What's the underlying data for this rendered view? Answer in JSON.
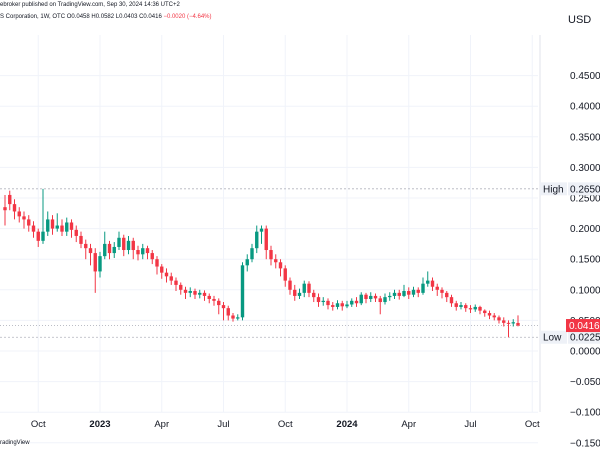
{
  "header": {
    "published": "ebroker published on TradingView.com, Sep 30, 2024 14:36 UTC+2",
    "symbol": "S Corporation, 1W, OTC",
    "ohlc": "O0.0458 H0.0582 L0.0403 C0.0416",
    "change": "−0.0020 (−4.64%)"
  },
  "currency": "USD",
  "footer": {
    "brand": "radingView"
  },
  "colors": {
    "up": "#089981",
    "down": "#f23645",
    "grid": "#f0f3fa"
  },
  "chart_data": {
    "type": "candlestick",
    "ylim": [
      -0.15,
      0.47
    ],
    "yticks": [
      {
        "v": 0.45,
        "label": "0.4500"
      },
      {
        "v": 0.4,
        "label": "0.4000"
      },
      {
        "v": 0.35,
        "label": "0.3500"
      },
      {
        "v": 0.3,
        "label": "0.3000"
      },
      {
        "v": 0.25,
        "label": "0.2500"
      },
      {
        "v": 0.2,
        "label": "0.2000"
      },
      {
        "v": 0.15,
        "label": "0.1500"
      },
      {
        "v": 0.1,
        "label": "0.1000"
      },
      {
        "v": 0.05,
        "label": "0.0500"
      },
      {
        "v": 0.0,
        "label": "0.0000"
      },
      {
        "v": -0.05,
        "label": "−0.0500"
      },
      {
        "v": -0.1,
        "label": "−0.1000"
      },
      {
        "v": -0.15,
        "label": "−0.1500"
      }
    ],
    "xticks": [
      {
        "week": 7,
        "label": "Oct",
        "major": false
      },
      {
        "week": 20,
        "label": "2023",
        "major": true
      },
      {
        "week": 33,
        "label": "Apr",
        "major": false
      },
      {
        "week": 46,
        "label": "Jul",
        "major": false
      },
      {
        "week": 59,
        "label": "Oct",
        "major": false
      },
      {
        "week": 72,
        "label": "2024",
        "major": true
      },
      {
        "week": 85,
        "label": "Apr",
        "major": false
      },
      {
        "week": 98,
        "label": "Jul",
        "major": false
      },
      {
        "week": 111,
        "label": "Oct",
        "major": false
      }
    ],
    "high": {
      "value": 0.265,
      "label": "High",
      "price": "0.2650"
    },
    "low": {
      "value": 0.0225,
      "label": "Low",
      "price": "0.0225"
    },
    "last": {
      "value": 0.0416,
      "price": "0.0416"
    },
    "candles": [
      [
        0.235,
        0.23,
        0.255,
        0.205
      ],
      [
        0.255,
        0.24,
        0.262,
        0.23
      ],
      [
        0.24,
        0.228,
        0.248,
        0.215
      ],
      [
        0.228,
        0.22,
        0.235,
        0.21
      ],
      [
        0.22,
        0.215,
        0.228,
        0.2
      ],
      [
        0.215,
        0.205,
        0.222,
        0.195
      ],
      [
        0.205,
        0.195,
        0.212,
        0.185
      ],
      [
        0.195,
        0.18,
        0.2,
        0.17
      ],
      [
        0.18,
        0.195,
        0.265,
        0.175
      ],
      [
        0.195,
        0.215,
        0.228,
        0.188
      ],
      [
        0.215,
        0.2,
        0.222,
        0.19
      ],
      [
        0.2,
        0.205,
        0.225,
        0.195
      ],
      [
        0.205,
        0.195,
        0.215,
        0.188
      ],
      [
        0.195,
        0.21,
        0.218,
        0.188
      ],
      [
        0.21,
        0.198,
        0.215,
        0.185
      ],
      [
        0.198,
        0.188,
        0.205,
        0.178
      ],
      [
        0.188,
        0.175,
        0.195,
        0.168
      ],
      [
        0.175,
        0.168,
        0.182,
        0.15
      ],
      [
        0.168,
        0.16,
        0.175,
        0.14
      ],
      [
        0.16,
        0.13,
        0.168,
        0.095
      ],
      [
        0.13,
        0.155,
        0.162,
        0.12
      ],
      [
        0.155,
        0.175,
        0.195,
        0.15
      ],
      [
        0.175,
        0.16,
        0.18,
        0.15
      ],
      [
        0.16,
        0.17,
        0.178,
        0.152
      ],
      [
        0.17,
        0.185,
        0.195,
        0.165
      ],
      [
        0.185,
        0.165,
        0.19,
        0.155
      ],
      [
        0.165,
        0.18,
        0.188,
        0.158
      ],
      [
        0.18,
        0.165,
        0.185,
        0.15
      ],
      [
        0.165,
        0.158,
        0.172,
        0.148
      ],
      [
        0.158,
        0.168,
        0.175,
        0.15
      ],
      [
        0.168,
        0.16,
        0.172,
        0.15
      ],
      [
        0.16,
        0.15,
        0.165,
        0.142
      ],
      [
        0.15,
        0.138,
        0.155,
        0.125
      ],
      [
        0.138,
        0.128,
        0.142,
        0.118
      ],
      [
        0.128,
        0.122,
        0.135,
        0.112
      ],
      [
        0.122,
        0.115,
        0.128,
        0.108
      ],
      [
        0.115,
        0.108,
        0.12,
        0.098
      ],
      [
        0.108,
        0.1,
        0.112,
        0.092
      ],
      [
        0.1,
        0.095,
        0.105,
        0.085
      ],
      [
        0.095,
        0.098,
        0.104,
        0.088
      ],
      [
        0.098,
        0.092,
        0.102,
        0.085
      ],
      [
        0.092,
        0.095,
        0.1,
        0.086
      ],
      [
        0.095,
        0.09,
        0.099,
        0.082
      ],
      [
        0.09,
        0.085,
        0.094,
        0.078
      ],
      [
        0.085,
        0.082,
        0.09,
        0.074
      ],
      [
        0.082,
        0.075,
        0.086,
        0.06
      ],
      [
        0.075,
        0.07,
        0.08,
        0.05
      ],
      [
        0.07,
        0.058,
        0.074,
        0.05
      ],
      [
        0.058,
        0.053,
        0.062,
        0.048
      ],
      [
        0.053,
        0.055,
        0.06,
        0.05
      ],
      [
        0.055,
        0.14,
        0.145,
        0.05
      ],
      [
        0.14,
        0.15,
        0.158,
        0.13
      ],
      [
        0.15,
        0.168,
        0.175,
        0.145
      ],
      [
        0.168,
        0.195,
        0.205,
        0.16
      ],
      [
        0.195,
        0.2,
        0.205,
        0.175
      ],
      [
        0.2,
        0.165,
        0.205,
        0.15
      ],
      [
        0.165,
        0.15,
        0.172,
        0.14
      ],
      [
        0.15,
        0.145,
        0.158,
        0.135
      ],
      [
        0.145,
        0.135,
        0.15,
        0.122
      ],
      [
        0.135,
        0.115,
        0.14,
        0.105
      ],
      [
        0.115,
        0.1,
        0.12,
        0.092
      ],
      [
        0.1,
        0.09,
        0.108,
        0.082
      ],
      [
        0.09,
        0.095,
        0.102,
        0.085
      ],
      [
        0.095,
        0.11,
        0.115,
        0.088
      ],
      [
        0.11,
        0.095,
        0.114,
        0.088
      ],
      [
        0.095,
        0.088,
        0.1,
        0.08
      ],
      [
        0.088,
        0.08,
        0.094,
        0.072
      ],
      [
        0.08,
        0.082,
        0.088,
        0.074
      ],
      [
        0.082,
        0.075,
        0.086,
        0.068
      ],
      [
        0.075,
        0.072,
        0.08,
        0.066
      ],
      [
        0.072,
        0.078,
        0.083,
        0.068
      ],
      [
        0.078,
        0.073,
        0.082,
        0.066
      ],
      [
        0.073,
        0.076,
        0.082,
        0.07
      ],
      [
        0.076,
        0.082,
        0.086,
        0.072
      ],
      [
        0.082,
        0.078,
        0.088,
        0.072
      ],
      [
        0.078,
        0.092,
        0.096,
        0.075
      ],
      [
        0.092,
        0.085,
        0.095,
        0.078
      ],
      [
        0.085,
        0.09,
        0.096,
        0.08
      ],
      [
        0.09,
        0.086,
        0.094,
        0.08
      ],
      [
        0.086,
        0.08,
        0.09,
        0.06
      ],
      [
        0.08,
        0.088,
        0.094,
        0.076
      ],
      [
        0.088,
        0.09,
        0.096,
        0.082
      ],
      [
        0.09,
        0.095,
        0.1,
        0.085
      ],
      [
        0.095,
        0.09,
        0.1,
        0.084
      ],
      [
        0.09,
        0.098,
        0.108,
        0.088
      ],
      [
        0.098,
        0.092,
        0.104,
        0.085
      ],
      [
        0.092,
        0.1,
        0.105,
        0.088
      ],
      [
        0.1,
        0.095,
        0.104,
        0.088
      ],
      [
        0.095,
        0.11,
        0.12,
        0.092
      ],
      [
        0.11,
        0.115,
        0.13,
        0.105
      ],
      [
        0.115,
        0.105,
        0.12,
        0.098
      ],
      [
        0.105,
        0.1,
        0.11,
        0.09
      ],
      [
        0.1,
        0.095,
        0.104,
        0.086
      ],
      [
        0.095,
        0.088,
        0.098,
        0.08
      ],
      [
        0.088,
        0.078,
        0.092,
        0.072
      ],
      [
        0.078,
        0.072,
        0.082,
        0.066
      ],
      [
        0.072,
        0.075,
        0.08,
        0.068
      ],
      [
        0.075,
        0.07,
        0.078,
        0.064
      ],
      [
        0.07,
        0.068,
        0.075,
        0.062
      ],
      [
        0.068,
        0.072,
        0.076,
        0.064
      ],
      [
        0.072,
        0.066,
        0.074,
        0.06
      ],
      [
        0.066,
        0.062,
        0.068,
        0.056
      ],
      [
        0.062,
        0.058,
        0.066,
        0.052
      ],
      [
        0.058,
        0.055,
        0.062,
        0.05
      ],
      [
        0.055,
        0.05,
        0.058,
        0.045
      ],
      [
        0.05,
        0.046,
        0.055,
        0.04
      ],
      [
        0.046,
        0.045,
        0.05,
        0.0225
      ],
      [
        0.045,
        0.047,
        0.052,
        0.04
      ],
      [
        0.0458,
        0.0416,
        0.0582,
        0.0403
      ]
    ]
  }
}
